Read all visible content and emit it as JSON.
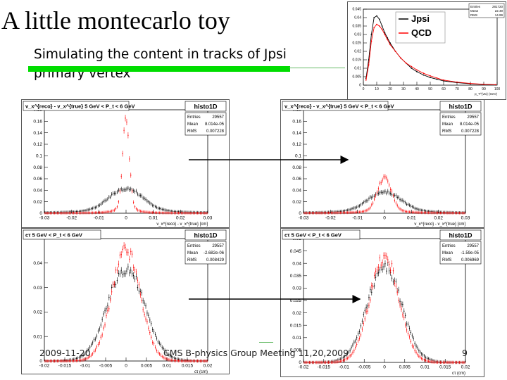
{
  "slide": {
    "title": "A little montecarlo toy",
    "subtitle": "Simulating the content in tracks of Jpsi primary vertex",
    "footer_date": "2009-11-20",
    "footer_center": "CMS B-physics Group Meeting 11,20,2009",
    "page_number": "9"
  },
  "colors": {
    "green_accent": "#00dd00",
    "red_series": "#ff0000",
    "black_series": "#000000",
    "panel_bg": "#ffffff",
    "stats_bg": "#ffffff"
  },
  "chart_data": [
    {
      "id": "inset",
      "type": "line",
      "title": "",
      "stats": {
        "lines": [
          [
            "Entries",
            "281720"
          ],
          [
            "Mean",
            "22.49"
          ],
          [
            "RMS",
            "14.99"
          ]
        ]
      },
      "legend": {
        "position": "top-right",
        "entries": [
          {
            "label": "Jpsi",
            "color": "#000000"
          },
          {
            "label": "QCD",
            "color": "#ff0000"
          }
        ]
      },
      "xlim": [
        0,
        100
      ],
      "ylim": [
        0,
        0.045
      ],
      "xticks": [
        0,
        10,
        20,
        30,
        40,
        50,
        60,
        70,
        80,
        90,
        100
      ],
      "yticks": [
        0,
        0.005,
        0.01,
        0.015,
        0.02,
        0.025,
        0.03,
        0.035,
        0.04,
        0.045
      ],
      "ytick_labels": [
        "0",
        "0.005",
        "0.01",
        "0.015",
        "0.02",
        "0.025",
        "0.03",
        "0.035",
        "0.04",
        "0.045"
      ],
      "xtick_labels": [
        "0",
        "10",
        "20",
        "30",
        "40",
        "50",
        "60",
        "70",
        "80",
        "90",
        "100"
      ],
      "xlabel": "p_T^{vtx} (GeV)",
      "series": [
        {
          "name": "Jpsi",
          "color": "#000000",
          "x": [
            2,
            4,
            6,
            8,
            10,
            12,
            14,
            16,
            18,
            20,
            24,
            28,
            32,
            36,
            40,
            45,
            50,
            55,
            60,
            70,
            80,
            90,
            99
          ],
          "y": [
            0.004,
            0.015,
            0.03,
            0.04,
            0.041,
            0.039,
            0.035,
            0.031,
            0.028,
            0.025,
            0.02,
            0.016,
            0.013,
            0.01,
            0.008,
            0.006,
            0.0045,
            0.0035,
            0.0025,
            0.0015,
            0.0008,
            0.0004,
            0.0002
          ]
        },
        {
          "name": "QCD",
          "color": "#ff0000",
          "x": [
            2,
            4,
            6,
            8,
            10,
            12,
            14,
            16,
            18,
            20,
            24,
            28,
            32,
            36,
            40,
            45,
            50,
            55,
            60,
            70,
            80,
            90,
            99
          ],
          "y": [
            0.003,
            0.012,
            0.026,
            0.034,
            0.036,
            0.035,
            0.033,
            0.03,
            0.027,
            0.024,
            0.02,
            0.016,
            0.013,
            0.011,
            0.009,
            0.007,
            0.0055,
            0.0042,
            0.003,
            0.0018,
            0.001,
            0.0005,
            0.0003
          ]
        }
      ]
    },
    {
      "id": "vx-left",
      "type": "scatter",
      "title": "v_x^{reco} - v_x^{true} 5 GeV < P_t < 6 GeV",
      "histo_name": "histo1D",
      "stats": {
        "lines": [
          [
            "Entries",
            "29557"
          ],
          [
            "Mean",
            "8.014e-05"
          ],
          [
            "RMS",
            "0.007228"
          ]
        ]
      },
      "xlim": [
        -0.03,
        0.03
      ],
      "ylim": [
        0,
        0.18
      ],
      "xticks": [
        -0.03,
        -0.02,
        -0.01,
        0,
        0.01,
        0.02,
        0.03
      ],
      "xtick_labels": [
        "-0.03",
        "-0.02",
        "-0.01",
        "0",
        "0.01",
        "0.02",
        "0.03"
      ],
      "yticks": [
        0,
        0.02,
        0.04,
        0.06,
        0.08,
        0.1,
        0.12,
        0.14,
        0.16,
        0.18
      ],
      "ytick_labels": [
        "0",
        "0.02",
        "0.04",
        "0.06",
        "0.08",
        "0.1",
        "0.12",
        "0.14",
        "0.16",
        "0.18"
      ],
      "xlabel": "v_x^{reco} - v_x^{true} [cm]",
      "peaks": {
        "black": {
          "amp": 0.042,
          "width": 0.006,
          "tail": 0.65
        },
        "red": {
          "amp": 0.16,
          "width": 0.0012,
          "tail": 0.45
        }
      }
    },
    {
      "id": "vx-right",
      "type": "scatter",
      "title": "v_x^{reco} - v_x^{true} 5 GeV < P_t < 6 GeV",
      "histo_name": "histo1D",
      "stats": {
        "lines": [
          [
            "Entries",
            "29557"
          ],
          [
            "Mean",
            "8.014e-05"
          ],
          [
            "RMS",
            "0.007228"
          ]
        ]
      },
      "xlim": [
        -0.03,
        0.03
      ],
      "ylim": [
        0,
        0.18
      ],
      "xticks": [
        -0.03,
        -0.02,
        -0.01,
        0,
        0.01,
        0.02,
        0.03
      ],
      "xtick_labels": [
        "-0.03",
        "-0.02",
        "-0.01",
        "0",
        "0.01",
        "0.02",
        "0.03"
      ],
      "yticks": [
        0,
        0.02,
        0.04,
        0.06,
        0.08,
        0.1,
        0.12,
        0.14,
        0.16,
        0.18
      ],
      "ytick_labels": [
        "0",
        "0.02",
        "0.04",
        "0.06",
        "0.08",
        "0.1",
        "0.12",
        "0.14",
        "0.16",
        "0.18"
      ],
      "xlabel": "v_x^{reco} - v_x^{true} [cm]",
      "peaks": {
        "black": {
          "amp": 0.036,
          "width": 0.006,
          "tail": 0.65
        },
        "red": {
          "amp": 0.062,
          "width": 0.0025,
          "tail": 0.5
        }
      }
    },
    {
      "id": "ct-left",
      "type": "scatter",
      "title": "cτ 5 GeV < P_t < 6 GeV",
      "histo_name": "histo1D",
      "stats": {
        "lines": [
          [
            "Entries",
            "29557"
          ],
          [
            "Mean",
            "-2.682e-06"
          ],
          [
            "RMS",
            "0.008429"
          ]
        ]
      },
      "xlim": [
        -0.02,
        0.02
      ],
      "ylim": [
        0,
        0.05
      ],
      "xticks": [
        -0.02,
        -0.015,
        -0.01,
        -0.005,
        0,
        0.005,
        0.01,
        0.015,
        0.02
      ],
      "xtick_labels": [
        "-0.02",
        "-0.015",
        "-0.01",
        "-0.005",
        "0",
        "0.005",
        "0.01",
        "0.015",
        "0.02"
      ],
      "yticks": [
        0,
        0.01,
        0.02,
        0.03,
        0.04
      ],
      "ytick_labels": [
        "0",
        "0.01",
        "0.02",
        "0.03",
        "0.04"
      ],
      "xlabel": "cτ (cm)",
      "peaks": {
        "black": {
          "amp": 0.038,
          "width": 0.0045,
          "tail": 0
        },
        "red": {
          "amp": 0.045,
          "width": 0.0035,
          "tail": 0
        }
      }
    },
    {
      "id": "ct-right",
      "type": "scatter",
      "title": "cτ 5 GeV < P_t < 6 GeV",
      "histo_name": "histo1D",
      "stats": {
        "lines": [
          [
            "Entries",
            "29557"
          ],
          [
            "Mean",
            "-1.59e-05"
          ],
          [
            "RMS",
            "0.006969"
          ]
        ]
      },
      "xlim": [
        -0.02,
        0.02
      ],
      "ylim": [
        0,
        0.05
      ],
      "xticks": [
        -0.02,
        -0.015,
        -0.01,
        -0.005,
        0,
        0.005,
        0.01,
        0.015,
        0.02
      ],
      "xtick_labels": [
        "-0.02",
        "-0.015",
        "-0.01",
        "-0.005",
        "0",
        "0.005",
        "0.01",
        "0.015",
        "0.02"
      ],
      "yticks": [
        0,
        0.005,
        0.01,
        0.015,
        0.02,
        0.025,
        0.03,
        0.035,
        0.04,
        0.045,
        0.05
      ],
      "ytick_labels": [
        "0",
        "0.005",
        "0.01",
        "0.015",
        "0.02",
        "0.025",
        "0.03",
        "0.035",
        "0.04",
        "0.045",
        "0.05"
      ],
      "xlabel": "cτ (cm)",
      "peaks": {
        "black": {
          "amp": 0.039,
          "width": 0.0042,
          "tail": 0
        },
        "red": {
          "amp": 0.043,
          "width": 0.0036,
          "tail": 0
        }
      }
    }
  ]
}
